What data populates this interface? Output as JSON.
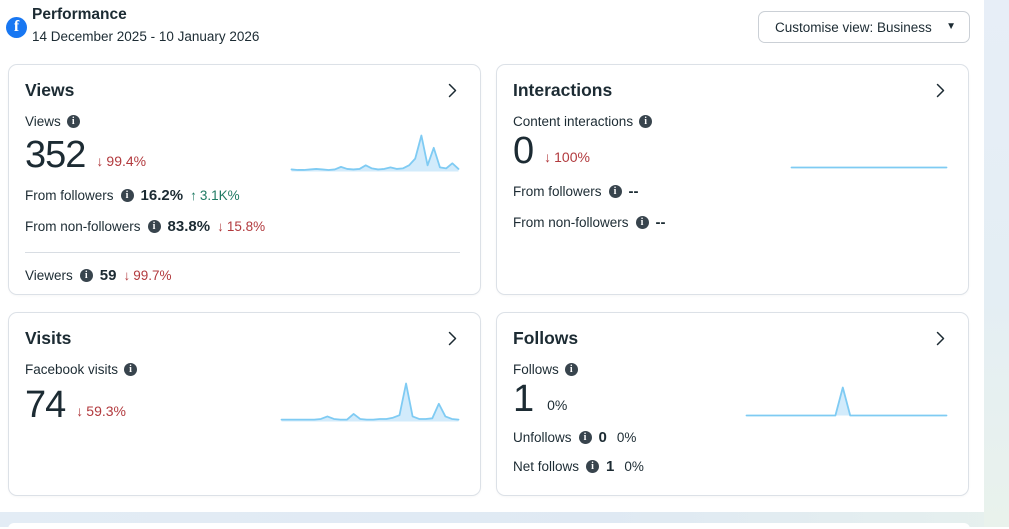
{
  "header": {
    "title": "Performance",
    "date_range": "14 December 2025 - 10 January 2026",
    "customise_view_label": "Customise view: Business"
  },
  "icons": {
    "facebook_f": "f",
    "info": "i",
    "dropdown_caret": "▼",
    "down_arrow": "↓",
    "up_arrow": "↑"
  },
  "colors": {
    "facebook_blue": "#1877F2",
    "text_dark": "#1C2B33",
    "negative_red": "#B23A3E",
    "positive_green": "#1F7A63",
    "sparkline_stroke": "#7FCBF3",
    "sparkline_fill": "#D2EBFB"
  },
  "cards": {
    "views": {
      "title": "Views",
      "metric": {
        "label": "Views",
        "value": "352",
        "change": "99.4%",
        "direction": "down"
      },
      "rows": [
        {
          "label": "From followers",
          "value": "16.2%",
          "change": "3.1K%",
          "direction": "up"
        },
        {
          "label": "From non-followers",
          "value": "83.8%",
          "change": "15.8%",
          "direction": "down"
        }
      ],
      "footer": {
        "label": "Viewers",
        "value": "59",
        "change": "99.7%",
        "direction": "down"
      },
      "sparkline": [
        4,
        3,
        3,
        4,
        5,
        4,
        3,
        4,
        9,
        5,
        4,
        5,
        12,
        6,
        4,
        5,
        8,
        5,
        6,
        12,
        25,
        70,
        12,
        46,
        8,
        6,
        16,
        5
      ]
    },
    "interactions": {
      "title": "Interactions",
      "metric": {
        "label": "Content interactions",
        "value": "0",
        "change": "100%",
        "direction": "down"
      },
      "rows": [
        {
          "label": "From followers",
          "value": "--"
        },
        {
          "label": "From non-followers",
          "value": "--"
        }
      ],
      "sparkline": [
        0,
        0,
        0,
        0,
        0,
        0,
        0,
        0,
        0,
        0,
        0,
        0,
        0,
        0,
        0,
        0,
        0,
        0,
        0,
        0,
        0,
        0,
        0,
        0,
        0,
        0,
        0,
        0
      ]
    },
    "visits": {
      "title": "Visits",
      "metric": {
        "label": "Facebook visits",
        "value": "74",
        "change": "59.3%",
        "direction": "down"
      },
      "sparkline": [
        3,
        3,
        3,
        3,
        3,
        3,
        4,
        8,
        4,
        3,
        3,
        12,
        4,
        3,
        3,
        4,
        4,
        6,
        10,
        60,
        8,
        4,
        4,
        5,
        28,
        8,
        4,
        3
      ]
    },
    "follows": {
      "title": "Follows",
      "metric": {
        "label": "Follows",
        "value": "1",
        "change": "0%",
        "direction": "neutral"
      },
      "rows": [
        {
          "label": "Unfollows",
          "value": "0",
          "change": "0%",
          "direction": "neutral"
        },
        {
          "label": "Net follows",
          "value": "1",
          "change": "0%",
          "direction": "neutral"
        }
      ],
      "sparkline": [
        0,
        0,
        0,
        0,
        0,
        0,
        0,
        0,
        0,
        0,
        0,
        0,
        0,
        1,
        0,
        0,
        0,
        0,
        0,
        0,
        0,
        0,
        0,
        0,
        0,
        0,
        0,
        0
      ]
    }
  }
}
